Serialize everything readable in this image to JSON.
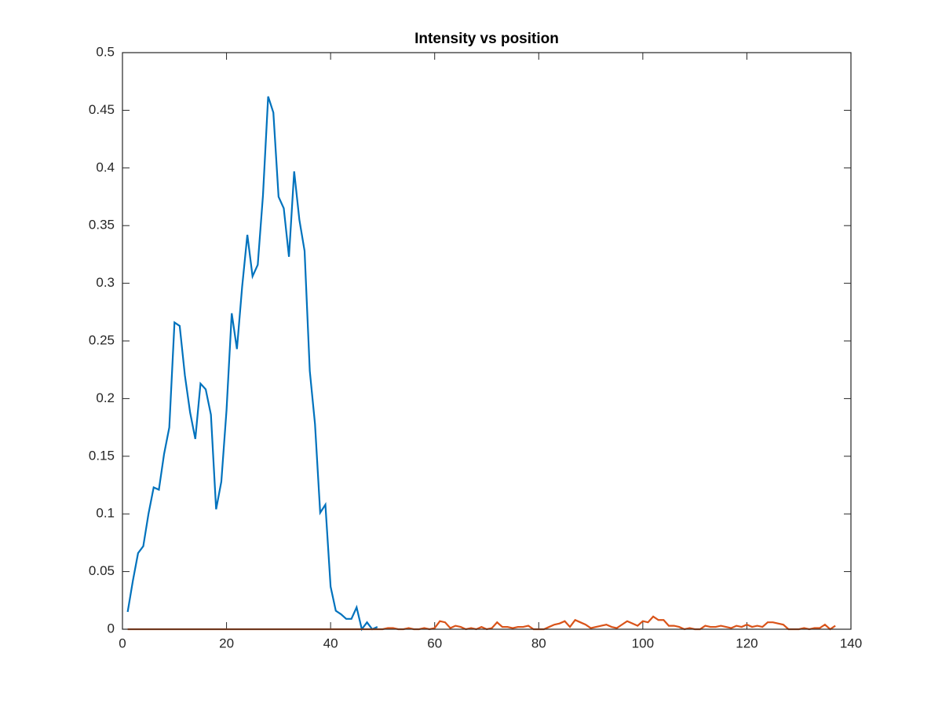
{
  "chart_data": {
    "type": "line",
    "title": "Intensity vs position",
    "series": [
      {
        "color": "#0072bd",
        "x": [
          1,
          2,
          3,
          4,
          5,
          6,
          7,
          8,
          9,
          10,
          11,
          12,
          13,
          14,
          15,
          16,
          17,
          18,
          19,
          20,
          21,
          22,
          23,
          24,
          25,
          26,
          27,
          28,
          29,
          30,
          31,
          32,
          33,
          34,
          35,
          36,
          37,
          38,
          39,
          40,
          41,
          42,
          43,
          44,
          45,
          46,
          47,
          48,
          49
        ],
        "values": [
          0.015,
          0.042,
          0.066,
          0.072,
          0.1,
          0.123,
          0.121,
          0.152,
          0.175,
          0.266,
          0.263,
          0.22,
          0.188,
          0.165,
          0.213,
          0.208,
          0.186,
          0.104,
          0.128,
          0.19,
          0.274,
          0.243,
          0.297,
          0.342,
          0.306,
          0.316,
          0.376,
          0.462,
          0.448,
          0.375,
          0.365,
          0.323,
          0.397,
          0.355,
          0.328,
          0.224,
          0.178,
          0.101,
          0.108,
          0.037,
          0.016,
          0.013,
          0.009,
          0.009,
          0.019,
          0,
          0.006,
          0,
          0.002
        ]
      },
      {
        "color": "#d95319",
        "x": [
          1,
          2,
          3,
          4,
          5,
          6,
          7,
          8,
          9,
          10,
          11,
          12,
          13,
          14,
          15,
          16,
          17,
          18,
          19,
          20,
          21,
          22,
          23,
          24,
          25,
          26,
          27,
          28,
          29,
          30,
          31,
          32,
          33,
          34,
          35,
          36,
          37,
          38,
          39,
          40,
          41,
          42,
          43,
          44,
          45,
          46,
          47,
          48,
          49,
          50,
          51,
          52,
          53,
          54,
          55,
          56,
          57,
          58,
          59,
          60,
          61,
          62,
          63,
          64,
          65,
          66,
          67,
          68,
          69,
          70,
          71,
          72,
          73,
          74,
          75,
          76,
          77,
          78,
          79,
          80,
          81,
          82,
          83,
          84,
          85,
          86,
          87,
          88,
          89,
          90,
          91,
          92,
          93,
          94,
          95,
          96,
          97,
          98,
          99,
          100,
          101,
          102,
          103,
          104,
          105,
          106,
          107,
          108,
          109,
          110,
          111,
          112,
          113,
          114,
          115,
          116,
          117,
          118,
          119,
          120,
          121,
          122,
          123,
          124,
          125,
          126,
          127,
          128,
          129,
          130,
          131,
          132,
          133,
          134,
          135,
          136,
          137
        ],
        "values": [
          0,
          0,
          0,
          0,
          0,
          0,
          0,
          0,
          0,
          0,
          0,
          0,
          0,
          0,
          0,
          0,
          0,
          0,
          0,
          0,
          0,
          0,
          0,
          0,
          0,
          0,
          0,
          0,
          0,
          0,
          0,
          0,
          0,
          0,
          0,
          0,
          0,
          0,
          0,
          0,
          0,
          0,
          0,
          0,
          0,
          0,
          0,
          0,
          0,
          0,
          0.001,
          0.001,
          0,
          0,
          0.001,
          0,
          0,
          0.001,
          0,
          0.001,
          0.007,
          0.006,
          0.001,
          0.003,
          0.002,
          0,
          0.001,
          0,
          0.002,
          0,
          0.001,
          0.006,
          0.002,
          0.002,
          0.001,
          0.002,
          0.002,
          0.003,
          0,
          0,
          0,
          0.002,
          0.004,
          0.005,
          0.007,
          0.002,
          0.008,
          0.006,
          0.004,
          0.001,
          0.002,
          0.003,
          0.004,
          0.002,
          0.001,
          0.004,
          0.007,
          0.005,
          0.003,
          0.007,
          0.006,
          0.011,
          0.008,
          0.008,
          0.003,
          0.003,
          0.002,
          0,
          0.001,
          0,
          0,
          0.003,
          0.002,
          0.002,
          0.003,
          0.002,
          0.001,
          0.003,
          0.002,
          0.004,
          0.002,
          0.003,
          0.002,
          0.006,
          0.006,
          0.005,
          0.004,
          0,
          0,
          0,
          0.001,
          0,
          0.001,
          0.001,
          0.004,
          0,
          0.003
        ]
      }
    ],
    "xlim": [
      0,
      140
    ],
    "xticks": [
      0,
      20,
      40,
      60,
      80,
      100,
      120,
      140
    ],
    "ylim": [
      0,
      0.5
    ],
    "yticks": [
      0,
      0.05,
      0.1,
      0.15,
      0.2,
      0.25,
      0.3,
      0.35,
      0.4,
      0.45,
      0.5
    ]
  }
}
